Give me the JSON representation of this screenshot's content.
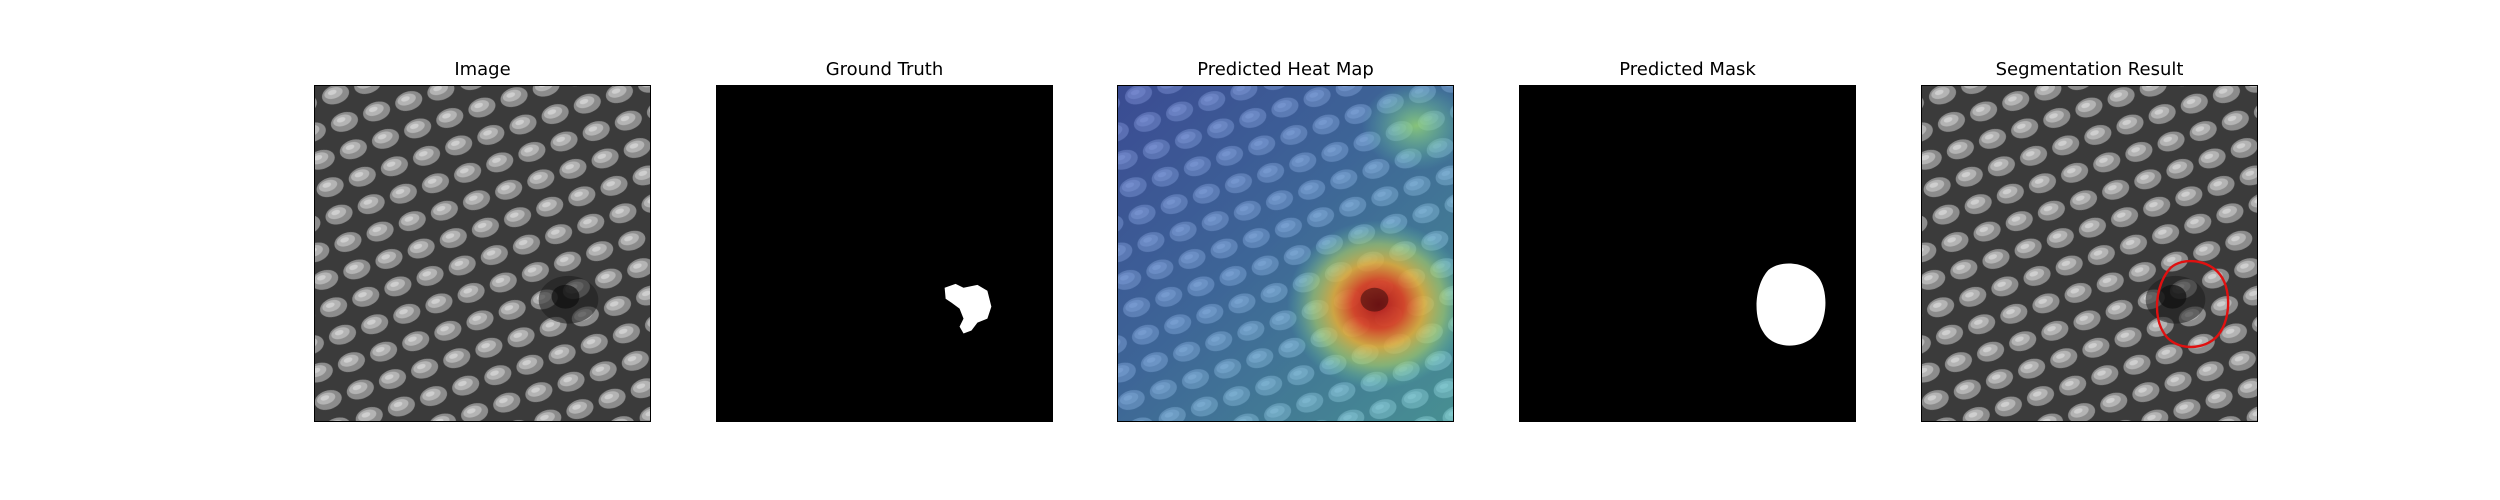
{
  "figure": {
    "panels": [
      {
        "title": "Image"
      },
      {
        "title": "Ground Truth"
      },
      {
        "title": "Predicted Heat Map"
      },
      {
        "title": "Predicted Mask"
      },
      {
        "title": "Segmentation Result"
      }
    ]
  },
  "colors": {
    "mask_foreground": "#ffffff",
    "mask_background": "#000000",
    "result_outline": "#e01010"
  }
}
